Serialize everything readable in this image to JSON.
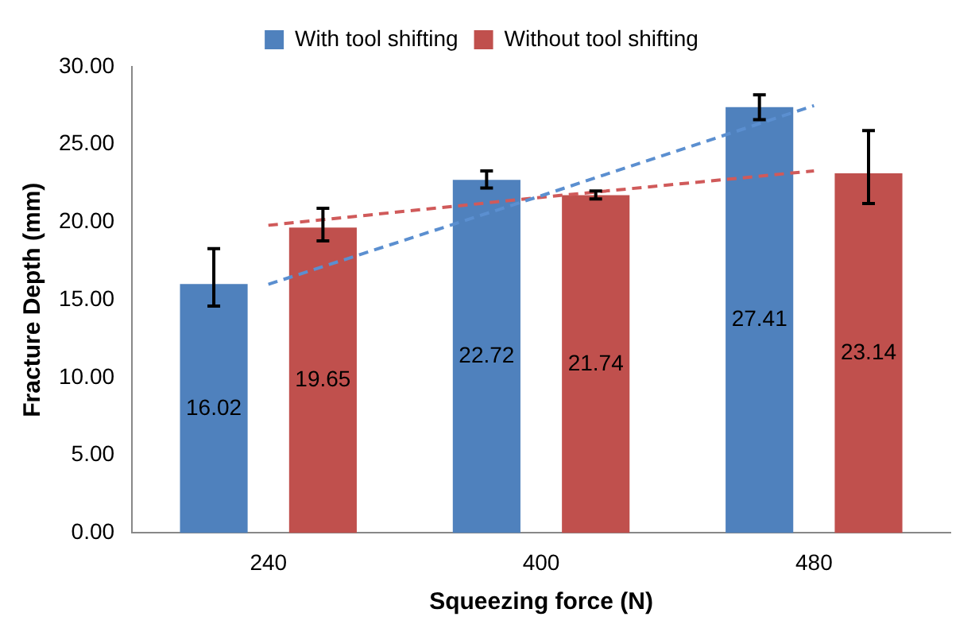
{
  "chart_data": {
    "type": "bar",
    "xlabel": "Squeezing force (N)",
    "ylabel": "Fracture Depth (mm)",
    "categories": [
      "240",
      "400",
      "480"
    ],
    "series": [
      {
        "name": "With tool shifting",
        "color": "#4f81bd",
        "values": [
          16.02,
          22.72,
          27.41
        ],
        "errors": [
          [
            14.6,
            18.3
          ],
          [
            22.2,
            23.3
          ],
          [
            26.6,
            28.2
          ]
        ],
        "value_labels": [
          "16.02",
          "22.72",
          "27.41"
        ]
      },
      {
        "name": "Without tool shifting",
        "color": "#c0504d",
        "values": [
          19.65,
          21.74,
          23.14
        ],
        "errors": [
          [
            18.8,
            20.9
          ],
          [
            21.5,
            22.0
          ],
          [
            21.2,
            25.9
          ]
        ],
        "value_labels": [
          "19.65",
          "21.74",
          "23.14"
        ]
      },
      {
        "type": "line",
        "color": "#5b8fd0",
        "values": [
          16.0,
          21.7,
          27.5
        ],
        "line_style": "dashed",
        "marker": "none"
      },
      {
        "type": "line",
        "color": "#d05a5a",
        "values": [
          19.8,
          21.6,
          23.3
        ],
        "line_style": "dashed",
        "marker": "none"
      }
    ],
    "legend": "top",
    "grid": false,
    "ylim": [
      0,
      30
    ],
    "yticks": [
      {
        "value": 0,
        "label": "0.00"
      },
      {
        "value": 5,
        "label": "5.00"
      },
      {
        "value": 10,
        "label": "10.00"
      },
      {
        "value": 15,
        "label": "15.00"
      },
      {
        "value": 20,
        "label": "20.00"
      },
      {
        "value": 25,
        "label": "25.00"
      },
      {
        "value": 30,
        "label": "30.00"
      }
    ]
  }
}
